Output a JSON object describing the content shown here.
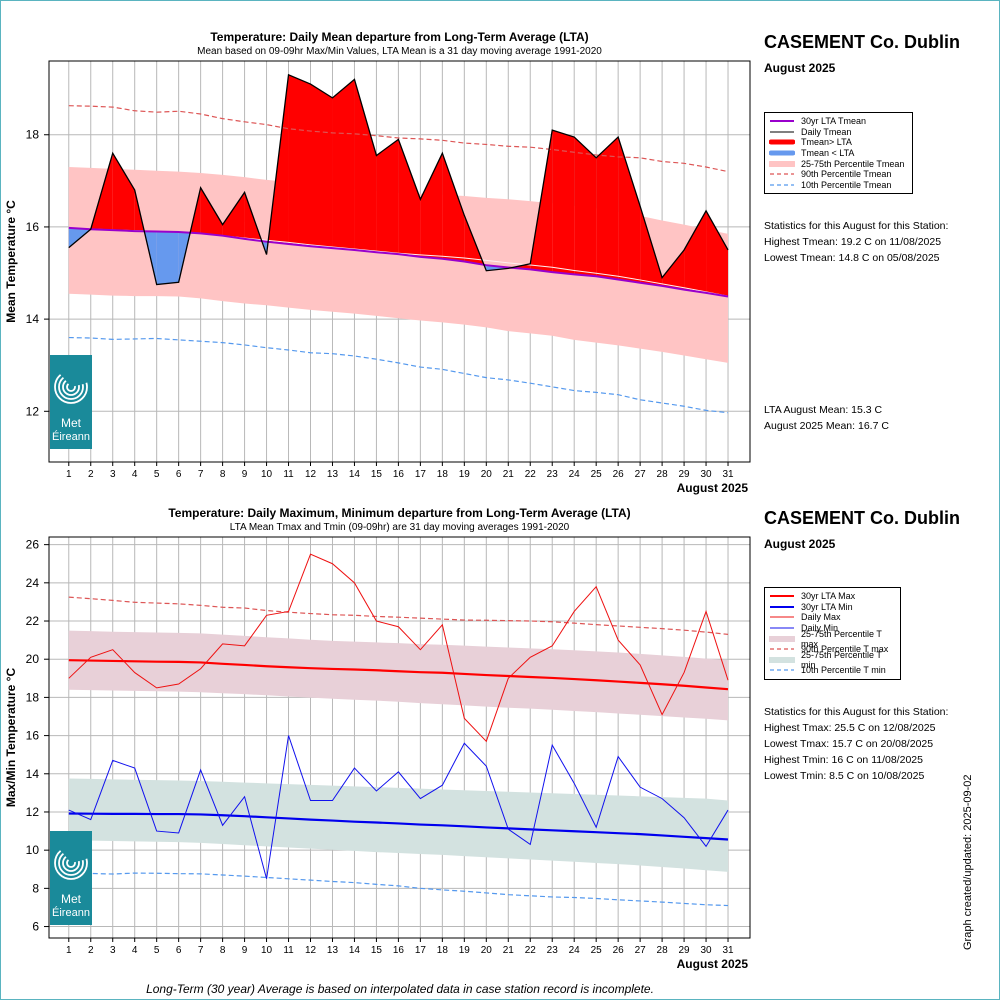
{
  "chart_data": [
    {
      "type": "area",
      "title": "Temperature: Daily Mean departure from Long-Term Average (LTA)",
      "subtitle": "Mean based on 09-09hr Max/Min Values, LTA Mean is a 31 day moving average 1991-2020",
      "ylabel": "Mean Temperature °C",
      "xlabel": "August 2025",
      "ylim": [
        10.9,
        19.6
      ],
      "yticks": [
        "12",
        "14",
        "16",
        "18"
      ],
      "xlim": [
        0.1,
        32.0
      ],
      "x": [
        1,
        2,
        3,
        4,
        5,
        6,
        7,
        8,
        9,
        10,
        11,
        12,
        13,
        14,
        15,
        16,
        17,
        18,
        19,
        20,
        21,
        22,
        23,
        24,
        25,
        26,
        27,
        28,
        29,
        30,
        31
      ],
      "grid": true,
      "legend_position": "right",
      "series": [
        {
          "name": "30yr LTA Tmean",
          "color": "#9900cc",
          "values": [
            15.98,
            15.95,
            15.93,
            15.91,
            15.9,
            15.89,
            15.86,
            15.81,
            15.74,
            15.68,
            15.63,
            15.58,
            15.54,
            15.5,
            15.45,
            15.41,
            15.35,
            15.31,
            15.25,
            15.17,
            15.12,
            15.08,
            15.02,
            14.97,
            14.93,
            14.86,
            14.79,
            14.72,
            14.64,
            14.57,
            14.49
          ]
        },
        {
          "name": "Daily Tmean",
          "color": "#000000",
          "values": [
            15.55,
            15.95,
            17.6,
            16.8,
            14.75,
            14.8,
            16.85,
            16.05,
            16.75,
            15.4,
            19.3,
            19.1,
            18.8,
            19.2,
            17.55,
            17.9,
            16.6,
            17.6,
            16.25,
            15.05,
            15.1,
            15.2,
            18.1,
            17.95,
            17.5,
            17.95,
            16.45,
            14.9,
            15.5,
            16.35,
            15.5
          ]
        },
        {
          "name": "Tmean> LTA",
          "color": "#ff0000"
        },
        {
          "name": "Tmean < LTA",
          "color": "#6699ee"
        },
        {
          "name": "25-75th Percentile Tmean",
          "color": "#ffc4c4",
          "low": [
            14.55,
            14.53,
            14.51,
            14.5,
            14.5,
            14.49,
            14.45,
            14.39,
            14.34,
            14.3,
            14.25,
            14.2,
            14.16,
            14.12,
            14.07,
            14.02,
            13.97,
            13.93,
            13.88,
            13.82,
            13.74,
            13.69,
            13.64,
            13.55,
            13.49,
            13.43,
            13.36,
            13.29,
            13.21,
            13.13,
            13.05
          ],
          "high": [
            17.3,
            17.28,
            17.26,
            17.24,
            17.22,
            17.2,
            17.17,
            17.13,
            17.08,
            17.02,
            16.98,
            16.92,
            16.87,
            16.82,
            16.78,
            16.74,
            16.72,
            16.7,
            16.67,
            16.63,
            16.6,
            16.56,
            16.51,
            16.46,
            16.4,
            16.33,
            16.24,
            16.14,
            16.05,
            15.95,
            15.85
          ]
        },
        {
          "name": "90th Percentile Tmean",
          "color": "#dd5555",
          "values": [
            18.63,
            18.62,
            18.6,
            18.52,
            18.49,
            18.51,
            18.45,
            18.35,
            18.28,
            18.22,
            18.13,
            18.08,
            18.04,
            18.02,
            17.98,
            17.93,
            17.91,
            17.88,
            17.82,
            17.79,
            17.75,
            17.73,
            17.68,
            17.62,
            17.56,
            17.52,
            17.5,
            17.42,
            17.38,
            17.3,
            17.2
          ]
        },
        {
          "name": "10th Percentile Tmean",
          "color": "#5599ee",
          "values": [
            13.6,
            13.59,
            13.56,
            13.57,
            13.58,
            13.55,
            13.52,
            13.49,
            13.44,
            13.38,
            13.33,
            13.27,
            13.25,
            13.2,
            13.13,
            13.05,
            12.96,
            12.91,
            12.82,
            12.73,
            12.68,
            12.61,
            12.53,
            12.45,
            12.41,
            12.36,
            12.25,
            12.18,
            12.11,
            12.02,
            11.97
          ]
        }
      ]
    },
    {
      "type": "line",
      "title": "Temperature: Daily Maximum, Minimum departure from Long-Term Average (LTA)",
      "subtitle": "LTA Mean Tmax and Tmin (09-09hr) are 31 day moving averages 1991-2020",
      "ylabel": "Max/Min Temperature °C",
      "xlabel": "August 2025",
      "ylim": [
        5.4,
        26.4
      ],
      "yticks": [
        "6",
        "8",
        "10",
        "12",
        "14",
        "16",
        "18",
        "20",
        "22",
        "24",
        "26"
      ],
      "xlim": [
        0.1,
        32.0
      ],
      "x": [
        1,
        2,
        3,
        4,
        5,
        6,
        7,
        8,
        9,
        10,
        11,
        12,
        13,
        14,
        15,
        16,
        17,
        18,
        19,
        20,
        21,
        22,
        23,
        24,
        25,
        26,
        27,
        28,
        29,
        30,
        31
      ],
      "grid": true,
      "legend_position": "right",
      "series": [
        {
          "name": "30yr LTA Max",
          "color": "#ff0000",
          "values": [
            19.95,
            19.93,
            19.91,
            19.89,
            19.87,
            19.86,
            19.83,
            19.76,
            19.7,
            19.63,
            19.58,
            19.53,
            19.49,
            19.46,
            19.42,
            19.37,
            19.32,
            19.29,
            19.23,
            19.17,
            19.12,
            19.07,
            19.02,
            18.96,
            18.9,
            18.83,
            18.76,
            18.69,
            18.61,
            18.52,
            18.43
          ]
        },
        {
          "name": "30yr LTA Min",
          "color": "#0000ee",
          "values": [
            11.92,
            11.91,
            11.9,
            11.9,
            11.89,
            11.89,
            11.87,
            11.83,
            11.78,
            11.72,
            11.66,
            11.6,
            11.55,
            11.49,
            11.45,
            11.4,
            11.34,
            11.3,
            11.25,
            11.19,
            11.14,
            11.09,
            11.04,
            10.99,
            10.94,
            10.89,
            10.84,
            10.77,
            10.7,
            10.63,
            10.56
          ]
        },
        {
          "name": "Daily Max",
          "color": "#ee1111",
          "values": [
            19.0,
            20.1,
            20.5,
            19.3,
            18.5,
            18.7,
            19.5,
            20.8,
            20.7,
            22.3,
            22.5,
            25.5,
            25.0,
            24.0,
            22.0,
            21.7,
            20.5,
            21.8,
            16.9,
            15.7,
            19.0,
            20.1,
            20.7,
            22.5,
            23.8,
            21.0,
            19.7,
            17.1,
            19.3,
            22.5,
            18.9
          ]
        },
        {
          "name": "Daily Min",
          "color": "#1111ee",
          "values": [
            12.1,
            11.6,
            14.7,
            14.3,
            11.0,
            10.9,
            14.2,
            11.3,
            12.8,
            8.5,
            16.0,
            12.6,
            12.6,
            14.3,
            13.1,
            14.1,
            12.7,
            13.4,
            15.6,
            14.4,
            11.1,
            10.3,
            15.5,
            13.5,
            11.2,
            14.9,
            13.3,
            12.7,
            11.7,
            10.2,
            12.1
          ]
        },
        {
          "name": "25-75th Percentile T max",
          "color": "#e8d0d8",
          "low": [
            18.4,
            18.38,
            18.36,
            18.34,
            18.32,
            18.3,
            18.27,
            18.22,
            18.17,
            18.11,
            18.05,
            17.99,
            17.93,
            17.88,
            17.83,
            17.77,
            17.7,
            17.64,
            17.58,
            17.52,
            17.46,
            17.41,
            17.35,
            17.29,
            17.23,
            17.16,
            17.09,
            17.02,
            16.95,
            16.88,
            16.8
          ],
          "high": [
            21.5,
            21.47,
            21.44,
            21.42,
            21.4,
            21.38,
            21.35,
            21.29,
            21.22,
            21.15,
            21.09,
            21.02,
            20.96,
            20.92,
            20.88,
            20.84,
            20.79,
            20.76,
            20.71,
            20.66,
            20.61,
            20.57,
            20.52,
            20.47,
            20.41,
            20.35,
            20.28,
            20.2,
            20.12,
            20.03,
            19.95
          ]
        },
        {
          "name": "90th Percentile T max",
          "color": "#dd5555",
          "values": [
            23.25,
            23.17,
            23.08,
            22.98,
            22.94,
            22.9,
            22.82,
            22.72,
            22.68,
            22.55,
            22.46,
            22.39,
            22.33,
            22.3,
            22.24,
            22.2,
            22.15,
            22.1,
            22.05,
            22.04,
            22.02,
            22.0,
            21.96,
            21.89,
            21.81,
            21.74,
            21.67,
            21.6,
            21.52,
            21.42,
            21.3
          ]
        },
        {
          "name": "25-75th Percentile T min",
          "color": "#d3e2e0",
          "low": [
            10.5,
            10.5,
            10.48,
            10.46,
            10.44,
            10.42,
            10.38,
            10.32,
            10.26,
            10.2,
            10.14,
            10.08,
            10.02,
            9.96,
            9.9,
            9.85,
            9.8,
            9.75,
            9.69,
            9.63,
            9.57,
            9.51,
            9.45,
            9.39,
            9.33,
            9.27,
            9.2,
            9.12,
            9.04,
            8.95,
            8.86
          ],
          "high": [
            13.75,
            13.73,
            13.71,
            13.69,
            13.67,
            13.65,
            13.62,
            13.58,
            13.54,
            13.5,
            13.46,
            13.42,
            13.38,
            13.34,
            13.3,
            13.26,
            13.22,
            13.18,
            13.14,
            13.1,
            13.06,
            13.02,
            12.98,
            12.94,
            12.9,
            12.86,
            12.82,
            12.78,
            12.74,
            12.7,
            12.6
          ]
        },
        {
          "name": "10th Percentile T min",
          "color": "#5599ee",
          "values": [
            8.8,
            8.78,
            8.75,
            8.8,
            8.79,
            8.77,
            8.76,
            8.7,
            8.64,
            8.57,
            8.5,
            8.43,
            8.36,
            8.3,
            8.21,
            8.13,
            8.0,
            7.92,
            7.85,
            7.76,
            7.67,
            7.61,
            7.55,
            7.52,
            7.47,
            7.4,
            7.34,
            7.28,
            7.21,
            7.14,
            7.1
          ]
        }
      ]
    }
  ],
  "panels": [
    {
      "station": "CASEMENT Co. Dublin",
      "month": "August 2025",
      "stats_heading": "Statistics for this August for this Station:",
      "stats": [
        "Highest Tmean: 19.2 C on 11/08/2025",
        "Lowest Tmean: 14.8 C on 05/08/2025"
      ],
      "means": [
        "LTA August Mean: 15.3 C",
        "August 2025 Mean: 16.7 C"
      ]
    },
    {
      "station": "CASEMENT Co. Dublin",
      "month": "August 2025",
      "stats_heading": "Statistics for this August for this Station:",
      "stats": [
        "Highest Tmax: 25.5 C on 12/08/2025",
        "Lowest Tmax: 15.7 C on 20/08/2025",
        "Highest Tmin: 16 C on 11/08/2025",
        "Lowest Tmin: 8.5 C on 10/08/2025"
      ]
    }
  ],
  "logo": {
    "line1": "Met",
    "line2": "Éireann"
  },
  "footnote": "Long-Term (30 year) Average is based on interpolated data in case station record is incomplete.",
  "created": "Graph created/updated:  2025-09-02"
}
